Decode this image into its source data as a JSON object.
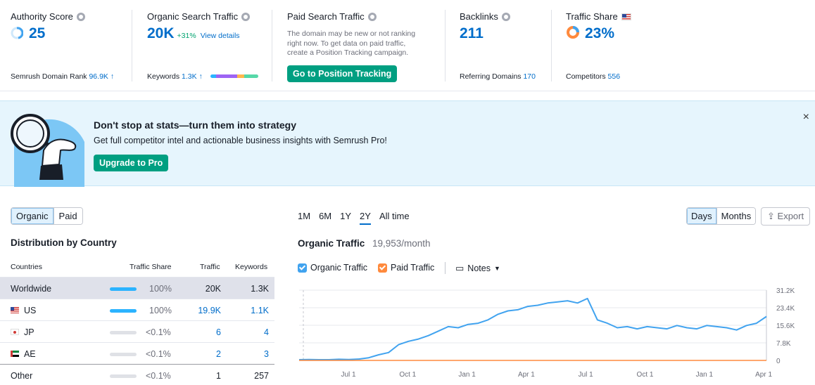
{
  "metrics": {
    "authority": {
      "title": "Authority Score",
      "value": "25",
      "foot_label": "Semrush Domain Rank",
      "foot_value": "96.9K ↑"
    },
    "organic": {
      "title": "Organic Search Traffic",
      "value": "20K",
      "delta": "+31%",
      "link": "View details",
      "foot_label": "Keywords",
      "foot_value": "1.3K ↑"
    },
    "paid": {
      "title": "Paid Search Traffic",
      "text": "The domain may be new or not ranking right now. To get data on paid traffic, create a Position Tracking campaign.",
      "button": "Go to Position Tracking"
    },
    "backlinks": {
      "title": "Backlinks",
      "value": "211",
      "foot_label": "Referring Domains",
      "foot_value": "170"
    },
    "share": {
      "title": "Traffic Share",
      "value": "23%",
      "foot_label": "Competitors",
      "foot_value": "556"
    }
  },
  "promo": {
    "title": "Don't stop at stats—turn them into strategy",
    "subtitle": "Get full competitor intel and actionable business insights with Semrush Pro!",
    "button": "Upgrade to Pro",
    "close": "×"
  },
  "left": {
    "tabs": [
      "Organic",
      "Paid"
    ],
    "title": "Distribution by Country",
    "columns": [
      "Countries",
      "Traffic Share",
      "Traffic",
      "Keywords"
    ],
    "rows": [
      {
        "country": "Worldwide",
        "flag": "",
        "share": "100%",
        "share_frac": 1.0,
        "traffic": "20K",
        "keywords": "1.3K"
      },
      {
        "country": "US",
        "flag": "us",
        "share": "100%",
        "share_frac": 1.0,
        "traffic": "19.9K",
        "keywords": "1.1K"
      },
      {
        "country": "JP",
        "flag": "jp",
        "share": "<0.1%",
        "share_frac": 0.0,
        "traffic": "6",
        "keywords": "4"
      },
      {
        "country": "AE",
        "flag": "ae",
        "share": "<0.1%",
        "share_frac": 0.0,
        "traffic": "2",
        "keywords": "3"
      },
      {
        "country": "Other",
        "flag": "",
        "share": "<0.1%",
        "share_frac": 0.0,
        "traffic": "1",
        "keywords": "257"
      }
    ]
  },
  "right": {
    "periods": [
      "1M",
      "6M",
      "1Y",
      "2Y",
      "All time"
    ],
    "active_period": "2Y",
    "granularity": [
      "Days",
      "Months"
    ],
    "export": "Export",
    "title": "Organic Traffic",
    "subtitle": "19,953/month",
    "legend": {
      "organic": "Organic Traffic",
      "paid": "Paid Traffic",
      "notes": "Notes"
    }
  },
  "colors": {
    "organic": "#41a3ef",
    "paid": "#ff8a3d",
    "accent": "#006dca",
    "green": "#009f81"
  },
  "chart_data": {
    "type": "line",
    "x_ticks": [
      "Jul 1",
      "Oct 1",
      "Jan 1",
      "Apr 1",
      "Jul 1",
      "Oct 1",
      "Jan 1",
      "Apr 1"
    ],
    "y_ticks": [
      "31.2K",
      "23.4K",
      "15.6K",
      "7.8K",
      "0"
    ],
    "ylim": [
      0,
      31200
    ],
    "series": [
      {
        "name": "Organic Traffic",
        "values": [
          300,
          400,
          300,
          300,
          500,
          400,
          600,
          1200,
          2500,
          3500,
          7000,
          8500,
          9500,
          11000,
          13000,
          15000,
          14500,
          16000,
          16500,
          18000,
          20500,
          22000,
          22500,
          24000,
          24500,
          25500,
          26000,
          26500,
          25500,
          27500,
          18000,
          16500,
          14500,
          15000,
          14000,
          15000,
          14500,
          14000,
          15500,
          14500,
          14000,
          15500,
          15000,
          14500,
          13500,
          15500,
          16500,
          19500
        ]
      },
      {
        "name": "Paid Traffic",
        "values": [
          0,
          0,
          0,
          0,
          0,
          0,
          0,
          0,
          0,
          0,
          0,
          0,
          0,
          0,
          0,
          0,
          0,
          0,
          0,
          0,
          0,
          0,
          0,
          0,
          0,
          0,
          0,
          0,
          0,
          0,
          0,
          0,
          0,
          0,
          0,
          0,
          0,
          0,
          0,
          0,
          0,
          0,
          0,
          0,
          0,
          0,
          0,
          0
        ]
      }
    ]
  }
}
